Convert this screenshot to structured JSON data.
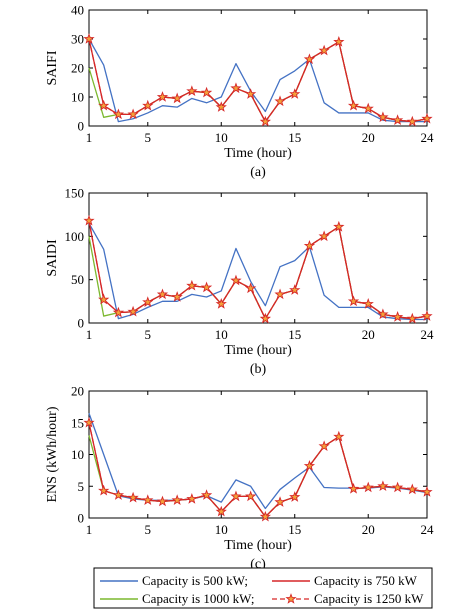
{
  "chart_data": [
    {
      "type": "line",
      "caption": "(a)",
      "ylabel": "SAIFI",
      "xlabel": "Time (hour)",
      "xlim": [
        1,
        24
      ],
      "ylim": [
        0,
        40
      ],
      "xticks": [
        1,
        5,
        10,
        15,
        20,
        24
      ],
      "yticks": [
        0,
        10,
        20,
        30,
        40
      ],
      "x": [
        1,
        2,
        3,
        4,
        5,
        6,
        7,
        8,
        9,
        10,
        11,
        12,
        13,
        14,
        15,
        16,
        17,
        18,
        19,
        20,
        21,
        22,
        23,
        24
      ],
      "series": [
        {
          "name": "Capacity is 500 kW",
          "color": "#4472c4",
          "values": [
            30,
            21,
            1.5,
            2.5,
            4.5,
            7,
            6.5,
            9.5,
            8,
            10,
            21.5,
            12,
            5,
            16,
            19,
            23,
            8,
            4.5,
            4.5,
            4.5,
            2,
            1.5,
            1.5,
            1.5
          ]
        },
        {
          "name": "Capacity is 750 kW",
          "color": "#d62728",
          "values": [
            30,
            7,
            4,
            4,
            7,
            10,
            9.5,
            12,
            11.5,
            6.5,
            13,
            11,
            1.5,
            8.5,
            11,
            23,
            26,
            29,
            7,
            6,
            3,
            2,
            1.5,
            2.5
          ]
        },
        {
          "name": "Capacity is 1000 kW",
          "color": "#7cb82f",
          "values": [
            20,
            3,
            4,
            4,
            7,
            10,
            9.5,
            12,
            11.5,
            6.5,
            13,
            11,
            1.5,
            8.5,
            11,
            23,
            26,
            29,
            7,
            6,
            3,
            2,
            1.5,
            2.5
          ]
        },
        {
          "name": "Capacity is 1250 kW",
          "color": "#d62728",
          "marker": "star",
          "values": [
            30,
            7,
            4,
            4,
            7,
            10,
            9.5,
            12,
            11.5,
            6.5,
            13,
            11,
            1.5,
            8.5,
            11,
            23,
            26,
            29,
            7,
            6,
            3,
            2,
            1.5,
            2.5
          ]
        }
      ]
    },
    {
      "type": "line",
      "caption": "(b)",
      "ylabel": "SAIDI",
      "xlabel": "Time (hour)",
      "xlim": [
        1,
        24
      ],
      "ylim": [
        0,
        150
      ],
      "xticks": [
        1,
        5,
        10,
        15,
        20,
        24
      ],
      "yticks": [
        0,
        50,
        100,
        150
      ],
      "x": [
        1,
        2,
        3,
        4,
        5,
        6,
        7,
        8,
        9,
        10,
        11,
        12,
        13,
        14,
        15,
        16,
        17,
        18,
        19,
        20,
        21,
        22,
        23,
        24
      ],
      "series": [
        {
          "name": "Capacity is 500 kW",
          "color": "#4472c4",
          "values": [
            115,
            85,
            5,
            10,
            18,
            25,
            25,
            33,
            30,
            37,
            86,
            48,
            20,
            65,
            72,
            88,
            32,
            18,
            18,
            18,
            7,
            5,
            4,
            4
          ]
        },
        {
          "name": "Capacity is 750 kW",
          "color": "#d62728",
          "values": [
            118,
            27,
            12,
            13,
            24,
            33,
            30,
            43,
            41,
            22,
            49,
            40,
            5,
            33,
            38,
            89,
            100,
            111,
            25,
            22,
            10,
            7,
            5,
            8
          ]
        },
        {
          "name": "Capacity is 1000 kW",
          "color": "#7cb82f",
          "values": [
            100,
            8,
            12,
            13,
            24,
            33,
            30,
            43,
            41,
            22,
            49,
            40,
            5,
            33,
            38,
            89,
            100,
            111,
            25,
            22,
            10,
            7,
            5,
            8
          ]
        },
        {
          "name": "Capacity is 1250 kW",
          "color": "#d62728",
          "marker": "star",
          "values": [
            118,
            27,
            12,
            13,
            24,
            33,
            30,
            43,
            41,
            22,
            49,
            40,
            5,
            33,
            38,
            89,
            100,
            111,
            25,
            22,
            10,
            7,
            5,
            8
          ]
        }
      ]
    },
    {
      "type": "line",
      "caption": "(c)",
      "ylabel": "ENS (kWh/hour)",
      "xlabel": "Time (hour)",
      "xlim": [
        1,
        24
      ],
      "ylim": [
        0,
        20
      ],
      "xticks": [
        1,
        5,
        10,
        15,
        20,
        24
      ],
      "yticks": [
        0,
        5,
        10,
        15,
        20
      ],
      "x": [
        1,
        2,
        3,
        4,
        5,
        6,
        7,
        8,
        9,
        10,
        11,
        12,
        13,
        14,
        15,
        16,
        17,
        18,
        19,
        20,
        21,
        22,
        23,
        24
      ],
      "series": [
        {
          "name": "Capacity is 500 kW",
          "color": "#4472c4",
          "values": [
            16.5,
            10,
            3.5,
            3,
            2.8,
            2.8,
            2.8,
            3,
            3.5,
            2.5,
            6,
            5,
            1.5,
            4.5,
            6.3,
            8,
            4.8,
            4.7,
            4.7,
            4.7,
            4.9,
            4.7,
            4.4,
            4
          ]
        },
        {
          "name": "Capacity is 750 kW",
          "color": "#d62728",
          "values": [
            15,
            4.3,
            3.6,
            3.2,
            2.8,
            2.6,
            2.8,
            3,
            3.6,
            1,
            3.4,
            3.4,
            0.2,
            2.5,
            3.3,
            8.2,
            11.3,
            12.8,
            4.6,
            4.8,
            5,
            4.8,
            4.5,
            4.1
          ]
        },
        {
          "name": "Capacity is 1000 kW",
          "color": "#7cb82f",
          "values": [
            13,
            4.3,
            3.6,
            3.2,
            2.8,
            2.6,
            2.8,
            3,
            3.6,
            1,
            3.4,
            3.4,
            0.2,
            2.5,
            3.3,
            8.2,
            11.3,
            12.8,
            4.6,
            4.8,
            5,
            4.8,
            4.5,
            4.1
          ]
        },
        {
          "name": "Capacity is 1250 kW",
          "color": "#d62728",
          "marker": "star",
          "values": [
            15,
            4.3,
            3.6,
            3.2,
            2.8,
            2.6,
            2.8,
            3,
            3.6,
            1,
            3.4,
            3.4,
            0.2,
            2.5,
            3.3,
            8.2,
            11.3,
            12.8,
            4.6,
            4.8,
            5,
            4.8,
            4.5,
            4.1
          ]
        }
      ]
    }
  ],
  "legend": {
    "placement": "bottom",
    "items": [
      {
        "label": "Capacity is 500 kW;",
        "color": "#4472c4",
        "marker": "none"
      },
      {
        "label": "Capacity is 750 kW",
        "color": "#d62728",
        "marker": "none"
      },
      {
        "label": "Capacity is 1000 kW;",
        "color": "#7cb82f",
        "marker": "none"
      },
      {
        "label": "Capacity is 1250 kW",
        "color": "#d62728",
        "marker": "star"
      }
    ]
  }
}
